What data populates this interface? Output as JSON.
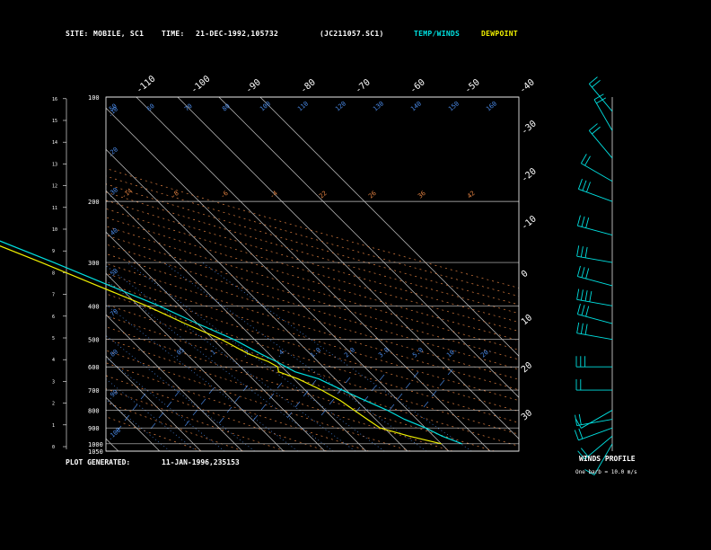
{
  "header": {
    "site_label": "SITE:",
    "site_value": "MOBILE, SC1",
    "time_label": "TIME:",
    "time_value": "21-DEC-1992,105732",
    "file_id": "(JC211057.SC1)",
    "legend_temp_winds": "TEMP/WINDS",
    "legend_dewpoint": "DEWPOINT"
  },
  "footer": {
    "generated_label": "PLOT GENERATED:",
    "generated_value": "11-JAN-1996,235153",
    "winds_title": "WINDS PROFILE",
    "barb_note": "One barb = 10.0 m/s"
  },
  "colors": {
    "background": "#000000",
    "frame": "#ffffff",
    "isobar": "#c8c8c8",
    "isotherm": "#c8c8c8",
    "dry_adiabat": "#e08040",
    "mixing_ratio": "#4a8ae8",
    "temperature": "#00e0e0",
    "dewpoint": "#f0f000",
    "winds": "#00e0e0"
  },
  "chart_data": [
    {
      "type": "line",
      "subtype": "skew-T log-P",
      "p_axis": {
        "range": [
          1050,
          100
        ],
        "scale": "log",
        "tick_labels": [
          "100",
          "200",
          "300",
          "400",
          "500",
          "600",
          "700",
          "800",
          "900",
          "1000",
          "1050"
        ]
      },
      "height_km_ticks": [
        "0",
        "1",
        "2",
        "3",
        "4",
        "5",
        "6",
        "7",
        "8",
        "9",
        "10",
        "11",
        "12",
        "13",
        "14",
        "15",
        "16"
      ],
      "temp_axis": {
        "top_labels": [
          "-110",
          "-100",
          "-90",
          "-80",
          "-70",
          "-60",
          "-50",
          "-40"
        ],
        "right_labels": [
          "-30",
          "-20",
          "-10",
          "0",
          "10",
          "20",
          "30"
        ]
      },
      "dry_adiabat_labels": [
        "-14",
        "-8",
        "-6",
        "-4",
        "22",
        "26",
        "36",
        "42"
      ],
      "mixing_ratio_labels": [
        ".05",
        ".1",
        ".2",
        ".4",
        "1.0",
        "2.0",
        "3.0",
        "5.0",
        "10.",
        "20."
      ],
      "mixing_ratio_labels_left": [
        ".10",
        ".20",
        ".30",
        ".40",
        ".50",
        ".70",
        ".80",
        ".90",
        ".100"
      ],
      "top_row_labels": [
        "50",
        "60",
        "70",
        "80",
        "100",
        "110",
        "120",
        "130",
        "140",
        "150",
        "160"
      ],
      "grid": true,
      "series": [
        {
          "name": "TEMP/WINDS",
          "color": "#00e0e0",
          "points": [
            {
              "p": 1000,
              "t": 25
            },
            {
              "p": 950,
              "t": 22
            },
            {
              "p": 900,
              "t": 20
            },
            {
              "p": 850,
              "t": 17
            },
            {
              "p": 800,
              "t": 15
            },
            {
              "p": 750,
              "t": 12
            },
            {
              "p": 700,
              "t": 9
            },
            {
              "p": 650,
              "t": 6
            },
            {
              "p": 620,
              "t": 2
            },
            {
              "p": 600,
              "t": 1
            },
            {
              "p": 580,
              "t": 0
            },
            {
              "p": 550,
              "t": -2
            },
            {
              "p": 500,
              "t": -5
            },
            {
              "p": 450,
              "t": -10
            },
            {
              "p": 400,
              "t": -15
            },
            {
              "p": 350,
              "t": -22
            },
            {
              "p": 300,
              "t": -30
            },
            {
              "p": 250,
              "t": -40
            },
            {
              "p": 200,
              "t": -52
            },
            {
              "p": 175,
              "t": -58
            },
            {
              "p": 150,
              "t": -64
            },
            {
              "p": 125,
              "t": -70
            },
            {
              "p": 110,
              "t": -73
            },
            {
              "p": 100,
              "t": -75
            }
          ]
        },
        {
          "name": "DEWPOINT",
          "color": "#f0f000",
          "points": [
            {
              "p": 1000,
              "t": 20
            },
            {
              "p": 950,
              "t": 14
            },
            {
              "p": 900,
              "t": 9
            },
            {
              "p": 850,
              "t": 8
            },
            {
              "p": 800,
              "t": 7
            },
            {
              "p": 750,
              "t": 6
            },
            {
              "p": 700,
              "t": 4
            },
            {
              "p": 650,
              "t": 1
            },
            {
              "p": 620,
              "t": -2
            },
            {
              "p": 600,
              "t": -1
            },
            {
              "p": 580,
              "t": -2
            },
            {
              "p": 550,
              "t": -5
            },
            {
              "p": 500,
              "t": -8
            },
            {
              "p": 450,
              "t": -13
            },
            {
              "p": 400,
              "t": -18
            },
            {
              "p": 350,
              "t": -25
            },
            {
              "p": 300,
              "t": -33
            },
            {
              "p": 250,
              "t": -43
            },
            {
              "p": 200,
              "t": -55
            },
            {
              "p": 175,
              "t": -62
            },
            {
              "p": 150,
              "t": -68
            },
            {
              "p": 125,
              "t": -74
            },
            {
              "p": 110,
              "t": -78
            },
            {
              "p": 100,
              "t": -80
            }
          ]
        }
      ]
    },
    {
      "type": "wind_barbs",
      "title": "WINDS PROFILE",
      "barbs": [
        {
          "p": 1000,
          "dir": 210,
          "spd": 5
        },
        {
          "p": 950,
          "dir": 230,
          "spd": 15
        },
        {
          "p": 900,
          "dir": 250,
          "spd": 20
        },
        {
          "p": 850,
          "dir": 260,
          "spd": 15
        },
        {
          "p": 800,
          "dir": 240,
          "spd": 10
        },
        {
          "p": 700,
          "dir": 270,
          "spd": 20
        },
        {
          "p": 600,
          "dir": 270,
          "spd": 25
        },
        {
          "p": 500,
          "dir": 280,
          "spd": 30
        },
        {
          "p": 450,
          "dir": 285,
          "spd": 30
        },
        {
          "p": 400,
          "dir": 280,
          "spd": 35
        },
        {
          "p": 350,
          "dir": 285,
          "spd": 30
        },
        {
          "p": 300,
          "dir": 280,
          "spd": 30
        },
        {
          "p": 250,
          "dir": 285,
          "spd": 30
        },
        {
          "p": 200,
          "dir": 290,
          "spd": 25
        },
        {
          "p": 175,
          "dir": 300,
          "spd": 20
        },
        {
          "p": 150,
          "dir": 320,
          "spd": 20
        },
        {
          "p": 125,
          "dir": 330,
          "spd": 20
        },
        {
          "p": 110,
          "dir": 320,
          "spd": 20
        }
      ]
    }
  ]
}
